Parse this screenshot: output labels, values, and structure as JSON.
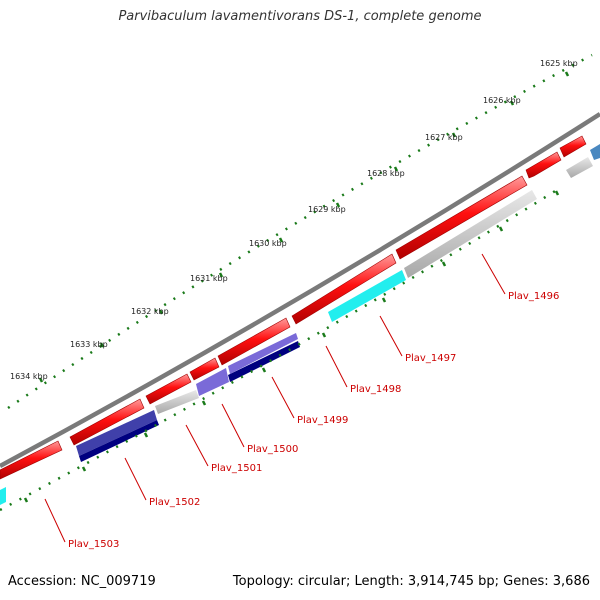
{
  "title": "Parvibaculum lavamentivorans DS-1, complete genome",
  "footer": {
    "accession": "Accession: NC_009719",
    "summary": "Topology: circular; Length: 3,914,745 bp; Genes: 3,686"
  },
  "scale_labels": [
    "1625 kbp",
    "1626 kbp",
    "1627 kbp",
    "1628 kbp",
    "1629 kbp",
    "1630 kbp",
    "1631 kbp",
    "1632 kbp",
    "1633 kbp",
    "1634 kbp"
  ],
  "gene_labels": [
    "Plav_1496",
    "Plav_1497",
    "Plav_1498",
    "Plav_1499",
    "Plav_1500",
    "Plav_1501",
    "Plav_1502",
    "Plav_1503"
  ],
  "colors": {
    "backbone": "#7a7a7a",
    "cds_forward": "#ff1010",
    "gene_reverse": "#c0c0c0",
    "gene_cyan": "#22eeee",
    "gene_blue": "#4040aa",
    "gene_navy": "#000080",
    "gene_purple": "#7a6ad8",
    "tick_green": "#1a7a1a",
    "label_red": "#cc0000"
  }
}
